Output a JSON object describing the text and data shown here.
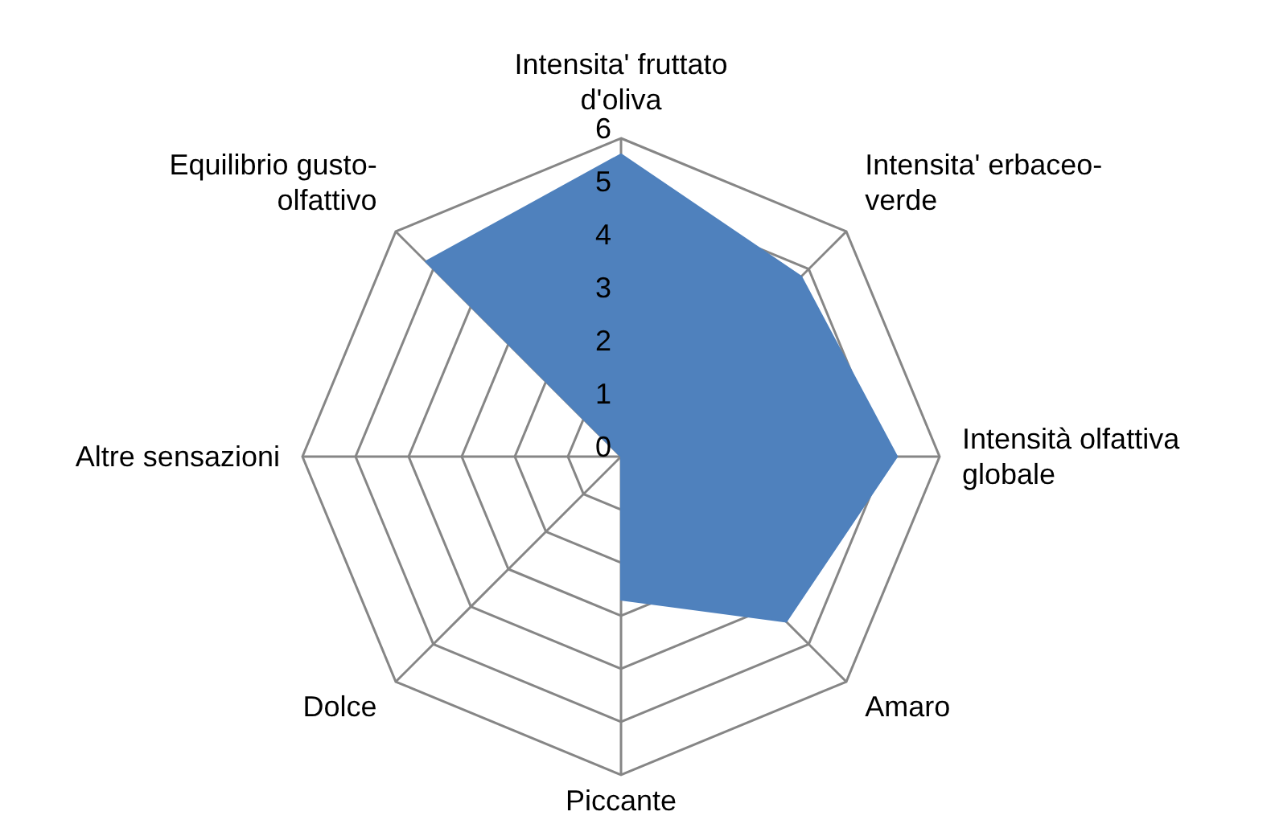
{
  "chart_data": {
    "type": "radar",
    "categories": [
      "Intensita' fruttato d'oliva",
      "Intensita' erbaceo-verde",
      "Intensità olfattiva globale",
      "Amaro",
      "Piccante",
      "Dolce",
      "Altre sensazioni",
      "Equilibrio gusto-olfattivo"
    ],
    "series": [
      {
        "color": "#4f81bd",
        "values": [
          5.7,
          4.8,
          5.2,
          4.4,
          2.7,
          0,
          0,
          5.2
        ]
      }
    ],
    "ylim": [
      0,
      6
    ],
    "yticks": [
      0,
      1,
      2,
      3,
      4,
      5,
      6
    ],
    "grid": true,
    "legend": false
  }
}
